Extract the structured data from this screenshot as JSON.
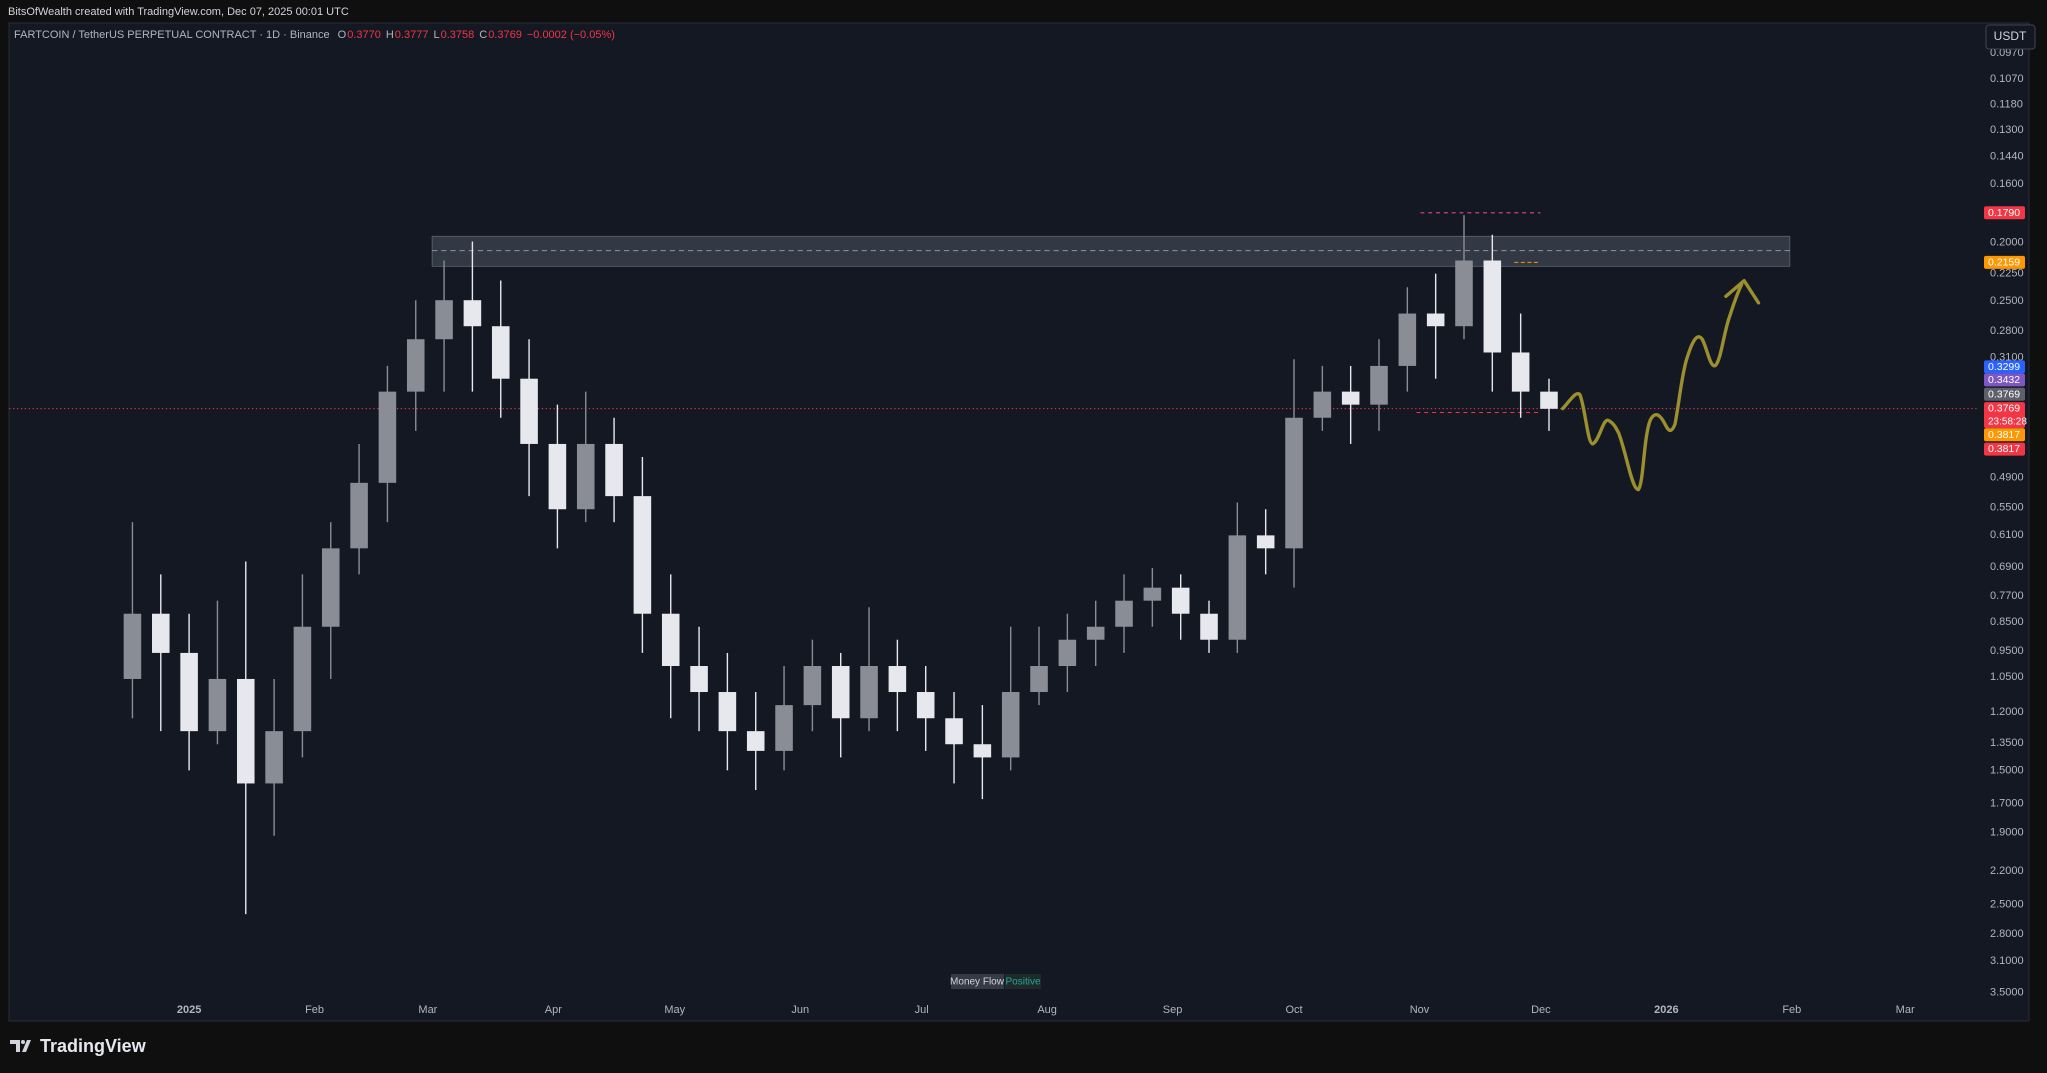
{
  "header": "BitsOfWealth created with TradingView.com, Dec 07, 2025 00:01 UTC",
  "currency": "USDT",
  "branding": "TradingView",
  "indicator": {
    "name": "Money Flow",
    "state": "Positive"
  },
  "price_tags": [
    {
      "label": "0.1790",
      "color": "#f23645"
    },
    {
      "label": "0.2159",
      "color": "#ff9800"
    },
    {
      "label": "0.3299",
      "color": "#2962ff"
    },
    {
      "label": "0.3432",
      "color": "#7e57c2"
    },
    {
      "label": "0.3769",
      "color": "#5d606b"
    },
    {
      "label": "0.3769",
      "sub": "23:58:28",
      "color": "#f23645"
    },
    {
      "label": "0.3817",
      "color": "#ff9800"
    },
    {
      "label": "0.3817",
      "color": "#f23645"
    }
  ],
  "chart_data": {
    "type": "candlestick",
    "title": "FARTCOIN / TetherUS PERPETUAL CONTRACT · 1D · Binance",
    "ohlc_legend": [
      {
        "key": "O",
        "value": "0.3770"
      },
      {
        "key": "H",
        "value": "0.3777"
      },
      {
        "key": "L",
        "value": "0.3758"
      },
      {
        "key": "C",
        "value": "0.3769"
      }
    ],
    "change": "−0.0002 (−0.05%)",
    "x": [
      -14,
      -7,
      0,
      7,
      14,
      21,
      28,
      35,
      42,
      49,
      56,
      63,
      70,
      77,
      84,
      91,
      98,
      105,
      112,
      119,
      126,
      133,
      140,
      147,
      154,
      161,
      168,
      175,
      182,
      189,
      196,
      203,
      210,
      217,
      224,
      231,
      238,
      245,
      252,
      259,
      266,
      273,
      280,
      287,
      294,
      301,
      308,
      315,
      322,
      329,
      336
    ],
    "open": [
      1.057,
      0.824,
      0.957,
      1.29,
      1.057,
      1.575,
      1.29,
      0.866,
      0.642,
      0.5,
      0.353,
      0.289,
      0.249,
      0.275,
      0.336,
      0.431,
      0.553,
      0.431,
      0.526,
      0.824,
      1.006,
      1.111,
      1.29,
      1.391,
      1.168,
      1.006,
      1.228,
      1.006,
      1.111,
      1.228,
      1.356,
      1.426,
      1.111,
      1.006,
      0.91,
      0.866,
      0.784,
      0.746,
      0.824,
      0.91,
      0.611,
      0.642,
      0.39,
      0.353,
      0.371,
      0.32,
      0.262,
      0.275,
      0.214,
      0.304,
      0.353
    ],
    "high": [
      1.228,
      1.29,
      1.498,
      1.356,
      2.593,
      1.923,
      1.426,
      1.057,
      0.709,
      0.581,
      0.41,
      0.353,
      0.353,
      0.39,
      0.526,
      0.642,
      0.581,
      0.581,
      0.957,
      1.228,
      1.29,
      1.498,
      1.615,
      1.498,
      1.29,
      1.426,
      1.29,
      1.29,
      1.391,
      1.575,
      1.672,
      1.498,
      1.168,
      1.111,
      1.006,
      0.957,
      0.866,
      0.91,
      0.957,
      0.957,
      0.709,
      0.746,
      0.41,
      0.431,
      0.41,
      0.353,
      0.336,
      0.289,
      0.353,
      0.39,
      0.41
    ],
    "low": [
      0.581,
      0.709,
      0.824,
      0.784,
      0.675,
      1.057,
      0.709,
      0.581,
      0.431,
      0.32,
      0.249,
      0.214,
      0.199,
      0.231,
      0.289,
      0.371,
      0.353,
      0.39,
      0.453,
      0.709,
      0.866,
      0.957,
      1.111,
      1.006,
      0.91,
      0.957,
      0.804,
      0.91,
      1.006,
      1.111,
      1.168,
      0.866,
      0.866,
      0.824,
      0.784,
      0.709,
      0.692,
      0.709,
      0.784,
      0.539,
      0.553,
      0.312,
      0.32,
      0.32,
      0.289,
      0.237,
      0.225,
      0.18,
      0.194,
      0.262,
      0.336
    ],
    "close": [
      0.824,
      0.957,
      1.29,
      1.057,
      1.575,
      1.29,
      0.866,
      0.642,
      0.5,
      0.353,
      0.289,
      0.249,
      0.275,
      0.336,
      0.431,
      0.553,
      0.431,
      0.526,
      0.824,
      1.006,
      1.111,
      1.29,
      1.391,
      1.168,
      1.006,
      1.228,
      1.006,
      1.111,
      1.228,
      1.356,
      1.426,
      1.111,
      1.006,
      0.91,
      0.866,
      0.784,
      0.746,
      0.824,
      0.91,
      0.611,
      0.642,
      0.39,
      0.353,
      0.371,
      0.32,
      0.262,
      0.275,
      0.214,
      0.304,
      0.353,
      0.3769
    ],
    "up_color": "#e6e8ee",
    "down_color": "#8a8d96",
    "log_scale": true,
    "inverted": true,
    "xlim": [
      -44.5,
      442
    ],
    "xticks": [
      {
        "value": 0,
        "label": "2025"
      },
      {
        "value": 31,
        "label": "Feb"
      },
      {
        "value": 59,
        "label": "Mar"
      },
      {
        "value": 90,
        "label": "Apr"
      },
      {
        "value": 120,
        "label": "May"
      },
      {
        "value": 151,
        "label": "Jun"
      },
      {
        "value": 181,
        "label": "Jul"
      },
      {
        "value": 212,
        "label": "Aug"
      },
      {
        "value": 243,
        "label": "Sep"
      },
      {
        "value": 273,
        "label": "Oct"
      },
      {
        "value": 304,
        "label": "Nov"
      },
      {
        "value": 334,
        "label": "Dec"
      },
      {
        "value": 365,
        "label": "2026"
      },
      {
        "value": 396,
        "label": "Feb"
      },
      {
        "value": 424,
        "label": "Mar"
      }
    ],
    "ylim": [
      0.0866,
      3.9
    ],
    "yticks": [
      {
        "value": 0.097,
        "label": "0.0970"
      },
      {
        "value": 0.107,
        "label": "0.1070"
      },
      {
        "value": 0.118,
        "label": "0.1180"
      },
      {
        "value": 0.13,
        "label": "0.1300"
      },
      {
        "value": 0.144,
        "label": "0.1440"
      },
      {
        "value": 0.16,
        "label": "0.1600"
      },
      {
        "value": 0.2,
        "label": "0.2000"
      },
      {
        "value": 0.225,
        "label": "0.2250"
      },
      {
        "value": 0.25,
        "label": "0.2500"
      },
      {
        "value": 0.28,
        "label": "0.2800"
      },
      {
        "value": 0.31,
        "label": "0.3100"
      },
      {
        "value": 0.49,
        "label": "0.4900"
      },
      {
        "value": 0.55,
        "label": "0.5500"
      },
      {
        "value": 0.61,
        "label": "0.6100"
      },
      {
        "value": 0.69,
        "label": "0.6900"
      },
      {
        "value": 0.77,
        "label": "0.7700"
      },
      {
        "value": 0.85,
        "label": "0.8500"
      },
      {
        "value": 0.95,
        "label": "0.9500"
      },
      {
        "value": 1.05,
        "label": "1.0500"
      },
      {
        "value": 1.2,
        "label": "1.2000"
      },
      {
        "value": 1.35,
        "label": "1.3500"
      },
      {
        "value": 1.5,
        "label": "1.5000"
      },
      {
        "value": 1.7,
        "label": "1.7000"
      },
      {
        "value": 1.9,
        "label": "1.9000"
      },
      {
        "value": 2.2,
        "label": "2.2000"
      },
      {
        "value": 2.5,
        "label": "2.5000"
      },
      {
        "value": 2.8,
        "label": "2.8000"
      },
      {
        "value": 3.1,
        "label": "3.1000"
      },
      {
        "value": 3.5,
        "label": "3.5000"
      }
    ]
  }
}
